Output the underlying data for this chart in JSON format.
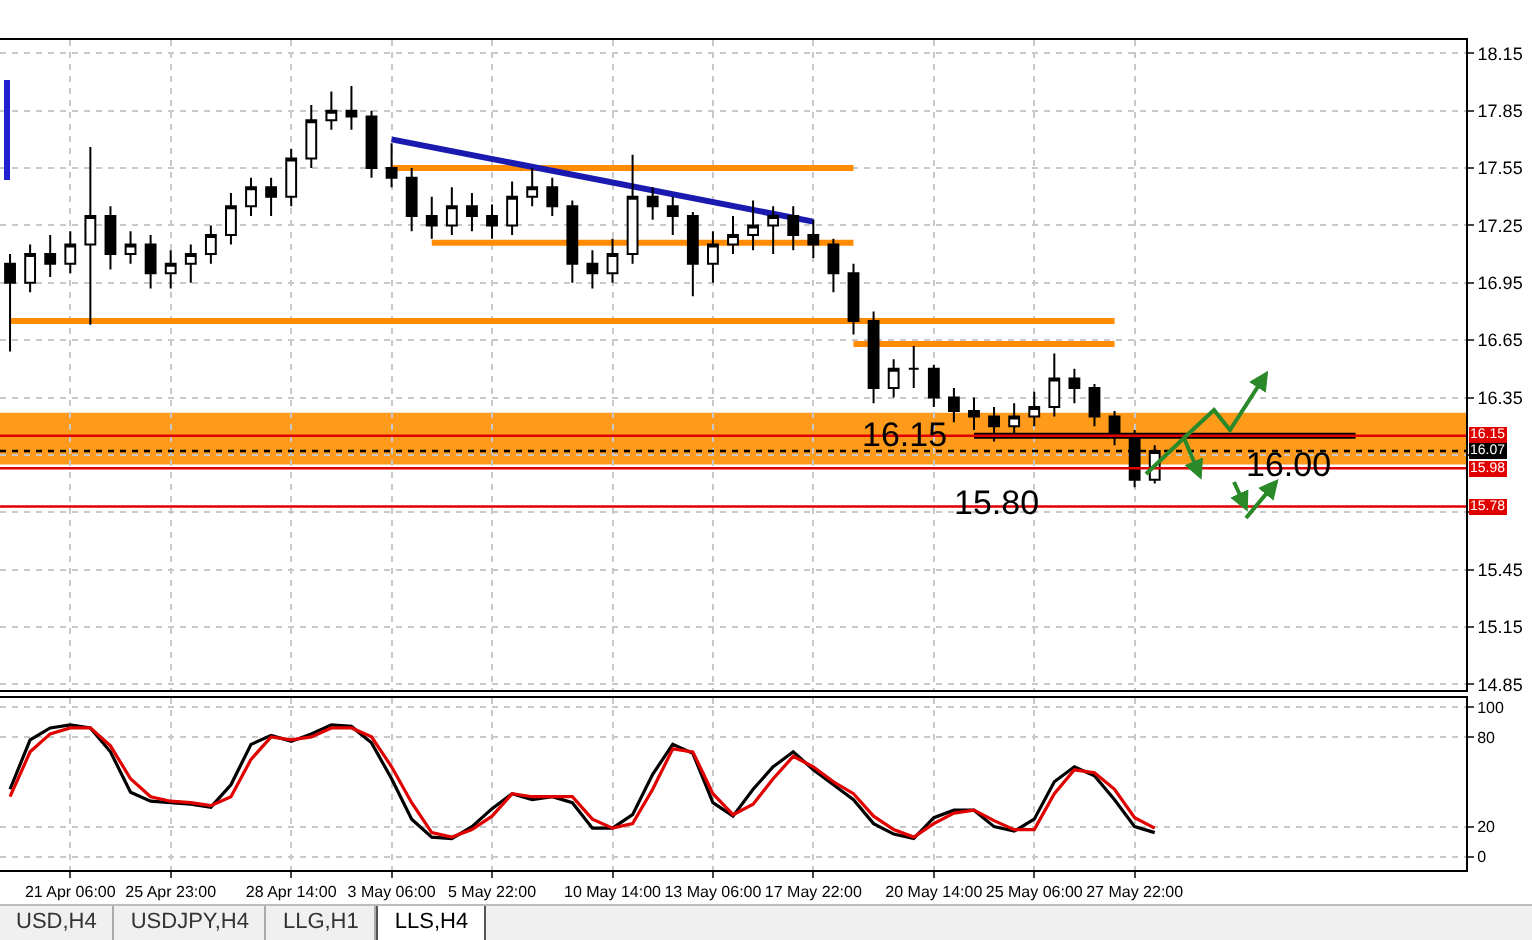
{
  "chart_data": [
    {
      "type": "candlestick",
      "grid": true,
      "tick_labels": "y",
      "categories": [
        null,
        null,
        null,
        null,
        null,
        null,
        null,
        null,
        null,
        null,
        null,
        null,
        null,
        null,
        null,
        null,
        null,
        null,
        null,
        null,
        null,
        null,
        null,
        null,
        null,
        null,
        null,
        null,
        null,
        null,
        null,
        null,
        null,
        null,
        null,
        null,
        null,
        null,
        null,
        null,
        null,
        null,
        null,
        null,
        null,
        null,
        null,
        null,
        null,
        null,
        null,
        null,
        null,
        null,
        null,
        null,
        null,
        null,
        null,
        null,
        null,
        null,
        null,
        null,
        null,
        null,
        null,
        null,
        null,
        null,
        null,
        null,
        null
      ],
      "ylim": [
        14.82,
        18.22
      ],
      "yticks": [
        18.15,
        17.85,
        17.55,
        17.25,
        16.95,
        16.65,
        16.35,
        {
          "value": 16.05,
          "label": null
        },
        {
          "value": 15.75,
          "label": null
        },
        15.45,
        15.15,
        14.85
      ],
      "series": [
        {
          "color": "#000000",
          "ohlc": [
            [
              17.05,
              17.1,
              16.59,
              16.95
            ],
            [
              16.95,
              17.15,
              16.9,
              17.1
            ],
            [
              17.1,
              17.2,
              16.98,
              17.05
            ],
            [
              17.05,
              17.22,
              17.0,
              17.15
            ],
            [
              17.15,
              17.66,
              16.73,
              17.3
            ],
            [
              17.3,
              17.35,
              17.02,
              17.1
            ],
            [
              17.1,
              17.22,
              17.05,
              17.15
            ],
            [
              17.15,
              17.2,
              16.92,
              17.0
            ],
            [
              17.0,
              17.12,
              16.92,
              17.05
            ],
            [
              17.05,
              17.15,
              16.95,
              17.1
            ],
            [
              17.1,
              17.25,
              17.05,
              17.2
            ],
            [
              17.2,
              17.42,
              17.15,
              17.35
            ],
            [
              17.35,
              17.5,
              17.3,
              17.45
            ],
            [
              17.45,
              17.5,
              17.3,
              17.4
            ],
            [
              17.4,
              17.65,
              17.35,
              17.6
            ],
            [
              17.6,
              17.88,
              17.55,
              17.8
            ],
            [
              17.8,
              17.95,
              17.75,
              17.85
            ],
            [
              17.85,
              17.98,
              17.75,
              17.82
            ],
            [
              17.82,
              17.85,
              17.5,
              17.55
            ],
            [
              17.55,
              17.68,
              17.45,
              17.5
            ],
            [
              17.5,
              17.55,
              17.22,
              17.3
            ],
            [
              17.3,
              17.4,
              17.18,
              17.25
            ],
            [
              17.25,
              17.45,
              17.2,
              17.35
            ],
            [
              17.35,
              17.42,
              17.22,
              17.3
            ],
            [
              17.3,
              17.36,
              17.18,
              17.25
            ],
            [
              17.25,
              17.48,
              17.2,
              17.4
            ],
            [
              17.4,
              17.55,
              17.35,
              17.45
            ],
            [
              17.45,
              17.5,
              17.3,
              17.35
            ],
            [
              17.35,
              17.38,
              16.95,
              17.05
            ],
            [
              17.05,
              17.12,
              16.92,
              17.0
            ],
            [
              17.0,
              17.18,
              16.95,
              17.1
            ],
            [
              17.1,
              17.62,
              17.05,
              17.4
            ],
            [
              17.4,
              17.45,
              17.28,
              17.35
            ],
            [
              17.35,
              17.4,
              17.2,
              17.3
            ],
            [
              17.3,
              17.32,
              16.88,
              17.05
            ],
            [
              17.05,
              17.22,
              16.95,
              17.15
            ],
            [
              17.15,
              17.3,
              17.1,
              17.2
            ],
            [
              17.2,
              17.38,
              17.12,
              17.25
            ],
            [
              17.25,
              17.35,
              17.1,
              17.3
            ],
            [
              17.3,
              17.35,
              17.12,
              17.2
            ],
            [
              17.2,
              17.28,
              17.08,
              17.15
            ],
            [
              17.15,
              17.18,
              16.9,
              17.0
            ],
            [
              17.0,
              17.05,
              16.68,
              16.75
            ],
            [
              16.75,
              16.8,
              16.32,
              16.4
            ],
            [
              16.4,
              16.55,
              16.35,
              16.5
            ],
            [
              16.5,
              16.62,
              16.4,
              16.5
            ],
            [
              16.5,
              16.52,
              16.3,
              16.35
            ],
            [
              16.35,
              16.4,
              16.22,
              16.28
            ],
            [
              16.28,
              16.35,
              16.18,
              16.25
            ],
            [
              16.25,
              16.3,
              16.12,
              16.2
            ],
            [
              16.2,
              16.32,
              16.15,
              16.25
            ],
            [
              16.25,
              16.38,
              16.2,
              16.3
            ],
            [
              16.3,
              16.58,
              16.25,
              16.45
            ],
            [
              16.45,
              16.5,
              16.32,
              16.4
            ],
            [
              16.4,
              16.42,
              16.2,
              16.25
            ],
            [
              16.25,
              16.28,
              16.1,
              16.15
            ],
            [
              16.15,
              16.18,
              15.88,
              15.92
            ],
            [
              15.92,
              16.1,
              15.9,
              16.07
            ],
            null,
            null,
            null,
            null,
            null,
            null,
            null,
            null,
            null,
            null,
            null,
            null,
            null,
            null,
            null
          ]
        },
        {
          "type": "line",
          "color": "#ff8c00",
          "values": [
            16.75,
            null,
            null,
            null,
            null,
            null,
            null,
            null,
            null,
            null,
            null,
            null,
            null,
            null,
            null,
            null,
            null,
            null,
            null,
            null,
            null,
            null,
            null,
            null,
            null,
            null,
            null,
            null,
            null,
            null,
            null,
            null,
            null,
            null,
            null,
            null,
            null,
            null,
            null,
            null,
            null,
            null,
            null,
            null,
            null,
            null,
            null,
            null,
            null,
            null,
            null,
            null,
            null,
            null,
            null,
            16.75,
            null,
            null,
            null,
            null,
            null,
            null,
            null,
            null,
            null,
            null,
            null,
            null,
            null,
            null,
            null,
            null,
            null
          ]
        },
        {
          "type": "line",
          "color": "#ff8c00",
          "values": [
            null,
            null,
            null,
            null,
            null,
            null,
            null,
            null,
            null,
            null,
            null,
            null,
            null,
            null,
            null,
            null,
            null,
            null,
            null,
            17.55,
            null,
            null,
            null,
            null,
            null,
            null,
            null,
            null,
            null,
            null,
            null,
            null,
            null,
            null,
            null,
            null,
            null,
            null,
            null,
            null,
            null,
            null,
            17.55,
            null,
            null,
            null,
            null,
            null,
            null,
            null,
            null,
            null,
            null,
            null,
            null,
            null,
            null,
            null,
            null,
            null,
            null,
            null,
            null,
            null,
            null,
            null,
            null,
            null,
            null,
            null,
            null,
            null,
            null
          ]
        },
        {
          "type": "line",
          "color": "#ff8c00",
          "values": [
            null,
            null,
            null,
            null,
            null,
            null,
            null,
            null,
            null,
            null,
            null,
            null,
            null,
            null,
            null,
            null,
            null,
            null,
            null,
            null,
            null,
            17.16,
            null,
            null,
            null,
            null,
            null,
            null,
            null,
            null,
            null,
            null,
            null,
            null,
            null,
            null,
            null,
            null,
            null,
            null,
            null,
            null,
            17.16,
            null,
            null,
            null,
            null,
            null,
            null,
            null,
            null,
            null,
            null,
            null,
            null,
            null,
            null,
            null,
            null,
            null,
            null,
            null,
            null,
            null,
            null,
            null,
            null,
            null,
            null,
            null,
            null,
            null,
            null
          ]
        },
        {
          "type": "line",
          "color": "#ff8c00",
          "values": [
            null,
            null,
            null,
            null,
            null,
            null,
            null,
            null,
            null,
            null,
            null,
            null,
            null,
            null,
            null,
            null,
            null,
            null,
            null,
            null,
            null,
            null,
            null,
            null,
            null,
            null,
            null,
            null,
            null,
            null,
            null,
            null,
            null,
            null,
            null,
            null,
            null,
            null,
            null,
            null,
            null,
            null,
            16.63,
            null,
            null,
            null,
            null,
            null,
            null,
            null,
            null,
            null,
            null,
            null,
            null,
            16.63,
            null,
            null,
            null,
            null,
            null,
            null,
            null,
            null,
            null,
            null,
            null,
            null,
            null,
            null,
            null,
            null,
            null
          ]
        },
        {
          "type": "line",
          "color": "#1a1ab0",
          "values": [
            null,
            null,
            null,
            null,
            null,
            null,
            null,
            null,
            null,
            null,
            null,
            null,
            null,
            null,
            null,
            null,
            null,
            null,
            null,
            17.7,
            null,
            null,
            null,
            null,
            null,
            null,
            null,
            null,
            null,
            null,
            null,
            null,
            null,
            null,
            null,
            null,
            null,
            null,
            null,
            null,
            17.27,
            null,
            null,
            null,
            null,
            null,
            null,
            null,
            null,
            null,
            null,
            null,
            null,
            null,
            null,
            null,
            null,
            null,
            null,
            null,
            null,
            null,
            null,
            null,
            null,
            null,
            null,
            null,
            null,
            null,
            null,
            null,
            null
          ]
        },
        {
          "type": "line",
          "color": "#000000",
          "values": [
            null,
            null,
            null,
            null,
            null,
            null,
            null,
            null,
            null,
            null,
            null,
            null,
            null,
            null,
            null,
            null,
            null,
            null,
            null,
            null,
            null,
            null,
            null,
            null,
            null,
            null,
            null,
            null,
            null,
            null,
            null,
            null,
            null,
            null,
            null,
            null,
            null,
            null,
            null,
            null,
            null,
            null,
            null,
            null,
            null,
            null,
            null,
            null,
            16.15,
            null,
            null,
            null,
            null,
            null,
            null,
            null,
            null,
            null,
            null,
            null,
            null,
            null,
            null,
            null,
            null,
            null,
            null,
            16.15,
            null,
            null,
            null,
            null,
            null
          ]
        }
      ],
      "bands": [
        {
          "axis": "y",
          "from": 16.0,
          "to": 16.27,
          "color": "#ff9a1a"
        }
      ],
      "ref_lines": [
        {
          "axis": "y",
          "value": 16.15,
          "label": "16.15",
          "color": "#e00000"
        },
        {
          "axis": "y",
          "value": 16.07,
          "label": "16.07",
          "color": "#000000",
          "line_style": "dotted"
        },
        {
          "axis": "y",
          "value": 15.98,
          "label": "15.98",
          "color": "#e00000"
        },
        {
          "axis": "y",
          "value": 15.78,
          "label": "15.78",
          "color": "#e00000"
        }
      ],
      "annotations": [
        {
          "text": "16.15",
          "y": 16.15
        },
        {
          "text": "16.00",
          "y": 16.0
        },
        {
          "text": "15.80",
          "y": 15.8
        }
      ]
    },
    {
      "type": "line",
      "grid": true,
      "categories": [
        null,
        null,
        null,
        "21 Apr 06:00",
        null,
        null,
        null,
        null,
        "25 Apr 23:00",
        null,
        null,
        null,
        null,
        null,
        "28 Apr 14:00",
        null,
        null,
        null,
        null,
        "3 May 06:00",
        null,
        null,
        null,
        null,
        "5 May 22:00",
        null,
        null,
        null,
        null,
        null,
        "10 May 14:00",
        null,
        null,
        null,
        null,
        "13 May 06:00",
        null,
        null,
        null,
        null,
        "17 May 22:00",
        null,
        null,
        null,
        null,
        null,
        "20 May 14:00",
        null,
        null,
        null,
        null,
        "25 May 06:00",
        null,
        null,
        null,
        null,
        "27 May 22:00",
        null,
        null,
        null,
        null,
        null,
        null,
        null,
        null,
        null,
        null,
        null,
        null,
        null,
        null,
        null,
        null
      ],
      "ylim": [
        -9,
        106
      ],
      "yticks": [
        0,
        20,
        80,
        100
      ],
      "series": [
        {
          "color": "#000000",
          "values": [
            45,
            78,
            86,
            88,
            86,
            70,
            43,
            37,
            36,
            35,
            33,
            48,
            75,
            81,
            77,
            82,
            88,
            87,
            76,
            52,
            25,
            13,
            12,
            20,
            32,
            42,
            38,
            40,
            36,
            19,
            19,
            28,
            55,
            75,
            69,
            36,
            27,
            45,
            60,
            70,
            58,
            48,
            38,
            22,
            15,
            12,
            26,
            31,
            31,
            20,
            17,
            25,
            50,
            60,
            54,
            38,
            20,
            16,
            null,
            null,
            null,
            null,
            null,
            null,
            null,
            null,
            null,
            null,
            null,
            null,
            null,
            null,
            null
          ]
        },
        {
          "color": "#e00000",
          "values": [
            40,
            70,
            82,
            86,
            86,
            74,
            52,
            40,
            37,
            36,
            34,
            40,
            65,
            80,
            78,
            80,
            86,
            86,
            80,
            60,
            36,
            16,
            13,
            18,
            27,
            42,
            40,
            40,
            40,
            25,
            19,
            22,
            45,
            72,
            70,
            42,
            28,
            35,
            52,
            67,
            60,
            50,
            42,
            27,
            18,
            13,
            22,
            29,
            31,
            24,
            18,
            18,
            42,
            58,
            56,
            45,
            26,
            19,
            null,
            null,
            null,
            null,
            null,
            null,
            null,
            null,
            null,
            null,
            null,
            null,
            null,
            null,
            null
          ]
        }
      ],
      "annotations": [
        "USD,H4",
        "USDJPY,H4",
        "LLG,H1",
        "LLS,H4"
      ]
    }
  ]
}
